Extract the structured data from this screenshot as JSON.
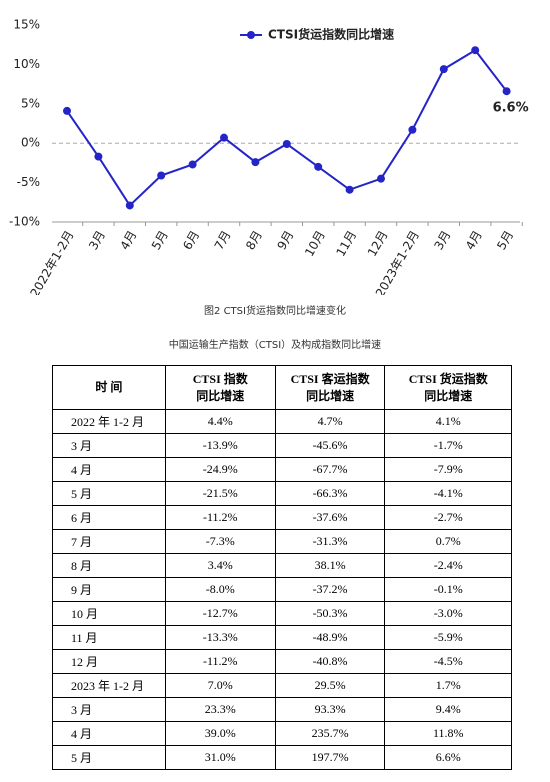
{
  "chart_data": {
    "type": "line",
    "categories": [
      "2022年1-2月",
      "3月",
      "4月",
      "5月",
      "6月",
      "7月",
      "8月",
      "9月",
      "10月",
      "11月",
      "12月",
      "2023年1-2月",
      "3月",
      "4月",
      "5月"
    ],
    "series": [
      {
        "name": "CTSI货运指数同比增速",
        "color": "#2424c8",
        "values": [
          4.1,
          -1.7,
          -7.9,
          -4.1,
          -2.7,
          0.7,
          -2.4,
          -0.1,
          -3.0,
          -5.9,
          -4.5,
          1.7,
          9.4,
          11.8,
          6.6
        ],
        "value_labels": [
          null,
          null,
          null,
          null,
          null,
          null,
          null,
          null,
          null,
          null,
          null,
          null,
          null,
          null,
          "6.6%"
        ]
      }
    ],
    "ylim": [
      -10,
      15
    ],
    "yticks": [
      {
        "value": -10,
        "label": "-10%"
      },
      {
        "value": -5,
        "label": "-5%"
      },
      {
        "value": 0,
        "label": "0%"
      },
      {
        "value": 5,
        "label": "5%"
      },
      {
        "value": 10,
        "label": "10%"
      },
      {
        "value": 15,
        "label": "15%"
      }
    ],
    "zero_line": true,
    "legend": "top"
  },
  "caption": "图2  CTSI货运指数同比增速变化",
  "table": {
    "title": "中国运输生产指数（CTSI）及构成指数同比增速",
    "header": [
      [
        "时 间"
      ],
      [
        "CTSI 指数",
        "同比增速"
      ],
      [
        "CTSI 客运指数",
        "同比增速"
      ],
      [
        "CTSI 货运指数",
        "同比增速"
      ]
    ],
    "rows": [
      [
        "2022 年 1-2 月",
        "4.4%",
        "4.7%",
        "4.1%"
      ],
      [
        "3 月",
        "-13.9%",
        "-45.6%",
        "-1.7%"
      ],
      [
        "4 月",
        "-24.9%",
        "-67.7%",
        "-7.9%"
      ],
      [
        "5 月",
        "-21.5%",
        "-66.3%",
        "-4.1%"
      ],
      [
        "6 月",
        "-11.2%",
        "-37.6%",
        "-2.7%"
      ],
      [
        "7 月",
        "-7.3%",
        "-31.3%",
        "0.7%"
      ],
      [
        "8 月",
        "3.4%",
        "38.1%",
        "-2.4%"
      ],
      [
        "9 月",
        "-8.0%",
        "-37.2%",
        "-0.1%"
      ],
      [
        "10 月",
        "-12.7%",
        "-50.3%",
        "-3.0%"
      ],
      [
        "11 月",
        "-13.3%",
        "-48.9%",
        "-5.9%"
      ],
      [
        "12 月",
        "-11.2%",
        "-40.8%",
        "-4.5%"
      ],
      [
        "2023 年 1-2 月",
        "7.0%",
        "29.5%",
        "1.7%"
      ],
      [
        "3 月",
        "23.3%",
        "93.3%",
        "9.4%"
      ],
      [
        "4 月",
        "39.0%",
        "235.7%",
        "11.8%"
      ],
      [
        "5 月",
        "31.0%",
        "197.7%",
        "6.6%"
      ]
    ]
  }
}
